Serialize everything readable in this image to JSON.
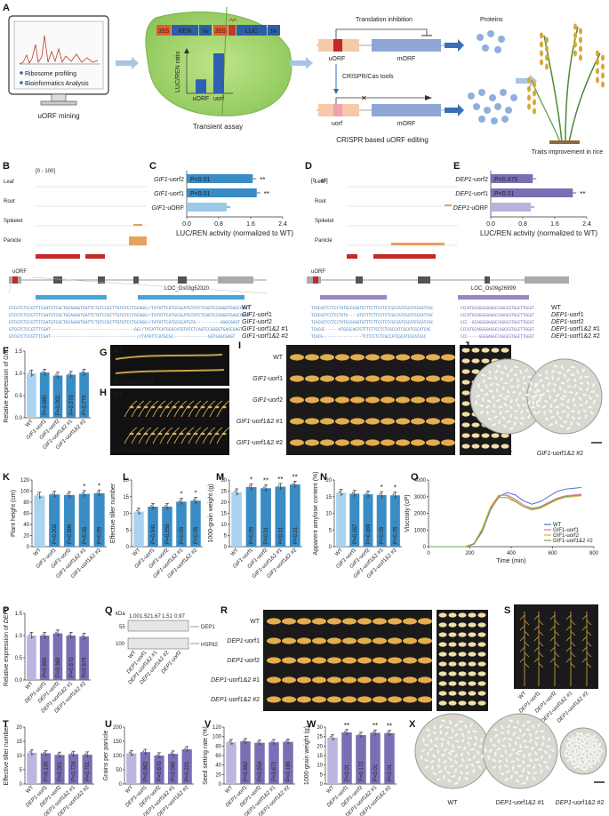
{
  "panelA": {
    "letter": "A",
    "mining_label": "uORF mining",
    "mining_bullets": [
      "Ribosome profiling",
      "Bioinformatics Analysis"
    ],
    "transient_label": "Transient assay",
    "construct": {
      "p35s_1": "35S",
      "ren": "REN",
      "ter1": "Ter",
      "p35s_2": "35S",
      "luc": "LUC",
      "ter2": "Ter"
    },
    "ratio_ylabel": "LUC/REN ratio",
    "ratio_bars": [
      {
        "name": "uORF",
        "value": 0.35
      },
      {
        "name": "uorf",
        "value": 1.0
      }
    ],
    "editing_label": "CRISPR based uORF editing",
    "translation_inhibition": "Translation inhibition",
    "uorf_top": "uORF",
    "morf_top": "mORF",
    "crispr_tools": "CRISPR/Cas tools",
    "uorf_bottom": "uorf",
    "morf_bottom": "mORF",
    "proteins": "Proteins",
    "traits_label": "Traits improvement in rice"
  },
  "panelB": {
    "letter": "B",
    "range": "[0 - 100]",
    "tracks": [
      "Leaf",
      "Root",
      "Spikelet",
      "Panicle"
    ],
    "uorf": "uORF",
    "locus": "LOC_Os03g52320",
    "seq_rows": [
      {
        "seq": "GTCGTCTCCGTTTCGATGTCGCTGCAGAGTGATTCTGTCCGCTTGTGTCCTGCAGG//TATATTCATGCGCATGTATCTCAGTCCGGGGTGAGCGAGT",
        "label_gene": "",
        "label_rest": "WT"
      },
      {
        "seq": "GTCGTCTCCGTTTCGATGTCGCTGCAGAGTGATTCTGTCCGCTTGTGTCCTGCAGG//TATATTCATGCGCATGTATCTCAGTCCGGGGTGAGCGAGT",
        "label_gene": "GIF1",
        "label_rest": "-uorf1"
      },
      {
        "seq": "GTCGTCTCCGTTTCGATGTCGCTGCAGAGTGATTCTGTCCGCTTGTGTCCTGCAGG//TATATTCATGCGCATGTA----------GAGCGAGT",
        "label_gene": "GIF1",
        "label_rest": "-uorf2"
      },
      {
        "seq": "GTCGTCTCCGTTTCGAT----------------------------------GG//TATATTCATGCGCATGTATCTCAGTCCGGGGTGAGCGAGT",
        "label_gene": "GIF1",
        "label_rest": "-uorf1&2 #1"
      },
      {
        "seq": "GTCGTCTCCGTTTCGAT-----------------------------------//TATATTCATGCGC--------------GGTGAGCGAGT",
        "label_gene": "GIF1",
        "label_rest": "-uorf1&2 #2"
      }
    ]
  },
  "panelD": {
    "letter": "D",
    "range": "[0 - 40]",
    "tracks": [
      "Leaf",
      "Root",
      "Spikelet",
      "Panicle"
    ],
    "uorf": "uORF",
    "locus": "LOC_Os09g26999",
    "seq_rows": [
      {
        "seq": "TCACGCTCCTCCTATGCGCAGTGTTTCTTCCTCTCGCCATCGCATCGCATCAC",
        "seq2": "CCCATGCAGGGGAGGCCAGGCGTGGCTTGGGT",
        "label_gene": "",
        "label_rest": "WT"
      },
      {
        "seq": "TCACGCTCCTCCTATG----GTGTTTCTTCCTCTCGCCATCGCATCGCATCAC",
        "seq2": "CCCATGCAGGGGAGGCCAGGCGTGGCTTGGGT",
        "label_gene": "DEP1",
        "label_rest": "-uorf1"
      },
      {
        "seq": "TCACGCTCCTCCTATGCGCAGTGTTTCTTCCTCTCGCCATCGCATCGCATCAC",
        "seq2": "CCC--GCAGGGGAGGCCAGGCGTGGCTTGGGT",
        "label_gene": "DEP1",
        "label_rest": "-uorf2"
      },
      {
        "seq": "TCACGC------ATGCGCAGTGTTTCTTCCTCTCGCCATCGCATCGCATCAC",
        "seq2": "CCCATGCAGGGGAGGCCAGGCGTGGCTTGGGT",
        "label_gene": "DEP1",
        "label_rest": "-uorf1&2 #1"
      },
      {
        "seq": "TCACG-----------------TCTTCCTCTCGCCATCGCATCGCATCAC",
        "seq2": "CCC-----GGGGAGGCCAGGCGTGGCTTGGGT",
        "label_gene": "DEP1",
        "label_rest": "-uorf1&2 #2"
      }
    ]
  },
  "panelG": {
    "letter": "G",
    "wt": "WT",
    "mut_gene": "GIF1",
    "mut_rest": "-uorf1&2 #2"
  },
  "panelH": {
    "letter": "H",
    "wt": "WT",
    "mut_gene": "GIF1",
    "mut_rest": "-uorf1&2 #2"
  },
  "panelI": {
    "letter": "I",
    "rows": [
      {
        "gene": "",
        "rest": "WT"
      },
      {
        "gene": "GIF1",
        "rest": "-uorf1"
      },
      {
        "gene": "GIF1",
        "rest": "-uorf2"
      },
      {
        "gene": "GIF1",
        "rest": "-uorf1&2 #1"
      },
      {
        "gene": "GIF1",
        "rest": "-uorf1&2 #2"
      }
    ]
  },
  "panelJ": {
    "letter": "J",
    "left": "WT",
    "right_gene": "GIF1",
    "right_rest": "-uorf1&2 #2"
  },
  "panelQ": {
    "letter": "Q",
    "kda": "kDa",
    "ratios": [
      "1.00",
      "1.52",
      "1.67",
      "1.51",
      "0.97"
    ],
    "marker_top": "55",
    "marker_bottom": "100",
    "band_top": "DEP1",
    "band_bottom": "HSP82",
    "lanes": [
      "WT",
      "DEP1-uorf1",
      "DEP1-uorf1&2 #1",
      "DEP1-uorf1&2 #2",
      "DEP1-uorf2"
    ]
  },
  "panelR": {
    "letter": "R",
    "rows": [
      {
        "gene": "",
        "rest": "WT"
      },
      {
        "gene": "DEP1",
        "rest": "-uorf1"
      },
      {
        "gene": "DEP1",
        "rest": "-uorf2"
      },
      {
        "gene": "DEP1",
        "rest": "-uorf1&2 #1"
      },
      {
        "gene": "DEP1",
        "rest": "-uorf1&2 #2"
      }
    ]
  },
  "panelS": {
    "letter": "S",
    "lanes": [
      "WT",
      "DEP1-uorf1",
      "DEP1-uorf2",
      "DEP1-uorf1&2 #1",
      "DEP1-uorf1&2 #2"
    ]
  },
  "panelX": {
    "letter": "X",
    "labels": [
      {
        "gene": "",
        "rest": "WT"
      },
      {
        "gene": "DEP1",
        "rest": "-uorf1&2 #1"
      },
      {
        "gene": "DEP1",
        "rest": "-uorf1&2 #2"
      }
    ]
  },
  "chart_data": [
    {
      "id": "C",
      "type": "bar",
      "orientation": "horizontal",
      "xlabel": "LUC/REN activity (normalized to WT)",
      "xlim": [
        0,
        2.4
      ],
      "xticks": [
        "0.0",
        "0.8",
        "1.6",
        "2.4"
      ],
      "categories": [
        "GIF1-uorf2",
        "GIF1-uorf1",
        "GIF1-uORF"
      ],
      "values": [
        1.65,
        1.75,
        1.0
      ],
      "pvals": [
        "P<0.01",
        "P<0.01",
        ""
      ],
      "stars": [
        "**",
        "**",
        ""
      ],
      "color": "#3a8cc4",
      "base_color": "#9cc9e6"
    },
    {
      "id": "E",
      "type": "bar",
      "orientation": "horizontal",
      "xlabel": "LUC/REN activity (normalized to WT)",
      "xlim": [
        0,
        2.4
      ],
      "xticks": [
        "0.0",
        "0.8",
        "1.6",
        "2.4"
      ],
      "categories": [
        "DEP1-uorf2",
        "DEP1-uorf1",
        "DEP1-uORF"
      ],
      "values": [
        1.05,
        2.05,
        1.0
      ],
      "pvals": [
        "P=0.475",
        "P<0.01",
        ""
      ],
      "stars": [
        "",
        "**",
        ""
      ],
      "color": "#7a6fb5",
      "base_color": "#b9b1dc"
    },
    {
      "id": "F",
      "type": "bar",
      "ylabel": "Relative expression of GIF1",
      "ylim": [
        0,
        1.5
      ],
      "yticks": [
        "0.0",
        "0.5",
        "1.0",
        "1.5"
      ],
      "categories": [
        "WT",
        "GIF1-uorf1",
        "GIF1-uorf2",
        "GIF1-uorf1&2 #1",
        "GIF1-uorf1&2 #2"
      ],
      "values": [
        1.0,
        1.02,
        0.95,
        0.97,
        1.02
      ],
      "pvals": [
        "",
        "P=0.680",
        "P=0.302",
        "P=0.578",
        "P=0.775"
      ],
      "stars": [
        "",
        "",
        "",
        "",
        ""
      ]
    },
    {
      "id": "K",
      "type": "bar",
      "ylabel": "Plant height (cm)",
      "ylim": [
        0,
        120
      ],
      "yticks": [
        "0",
        "20",
        "40",
        "60",
        "80",
        "100",
        "120"
      ],
      "categories": [
        "WT",
        "GIF1-uorf1",
        "GIF1-uorf2",
        "GIF1-uorf1&2 #1",
        "GIF1-uorf1&2 #2"
      ],
      "values": [
        92,
        94,
        93,
        95,
        96
      ],
      "pvals": [
        "",
        "P=0.202",
        "P=0.886",
        "P<0.05",
        "P<0.05"
      ],
      "stars": [
        "",
        "",
        "",
        "*",
        "*"
      ]
    },
    {
      "id": "L",
      "type": "bar",
      "ylabel": "Effective tiller number",
      "ylim": [
        0,
        20
      ],
      "yticks": [
        "0",
        "5",
        "10",
        "15",
        "20"
      ],
      "categories": [
        "WT",
        "GIF1-uorf1",
        "GIF1-uorf2",
        "GIF1-uorf1&2 #1",
        "GIF1-uorf1&2 #2"
      ],
      "values": [
        10.5,
        12,
        12,
        13.5,
        13.8
      ],
      "pvals": [
        "",
        "P=0.341",
        "P=0.255",
        "P<0.05",
        "P<0.05"
      ],
      "stars": [
        "",
        "",
        "",
        "*",
        "*"
      ]
    },
    {
      "id": "M",
      "type": "bar",
      "ylabel": "1000-grain weight (g)",
      "ylim": [
        0,
        30
      ],
      "yticks": [
        "0",
        "5",
        "10",
        "15",
        "20",
        "25",
        "30"
      ],
      "categories": [
        "WT",
        "GIF1-uorf1",
        "GIF1-uorf2",
        "GIF1-uorf1&2 #1",
        "GIF1-uorf1&2 #2"
      ],
      "values": [
        24.5,
        26.8,
        26.3,
        27.0,
        28.0
      ],
      "pvals": [
        "",
        "P<0.05",
        "P<0.01",
        "P<0.01",
        "P<0.01"
      ],
      "stars": [
        "",
        "*",
        "**",
        "**",
        "**"
      ]
    },
    {
      "id": "N",
      "type": "bar",
      "ylabel": "Apparent amylose content (%)",
      "ylim": [
        0,
        20
      ],
      "yticks": [
        "0",
        "5",
        "10",
        "15",
        "20"
      ],
      "categories": [
        "WT",
        "GIF1-uorf1",
        "GIF1-uorf2",
        "GIF1-uorf1&2 #1",
        "GIF1-uorf1&2 #2"
      ],
      "values": [
        16.2,
        15.9,
        15.7,
        15.5,
        15.4
      ],
      "pvals": [
        "",
        "P=0.167",
        "P=0.069",
        "P<0.05",
        "P<0.05"
      ],
      "stars": [
        "",
        "",
        "",
        "*",
        "*"
      ]
    },
    {
      "id": "O",
      "type": "line",
      "xlabel": "Time (min)",
      "ylabel": "Viscosity (cP)",
      "xlim": [
        0,
        800
      ],
      "ylim": [
        0,
        4000
      ],
      "xticks": [
        "0",
        "200",
        "400",
        "600",
        "800"
      ],
      "yticks": [
        "0",
        "1000",
        "2000",
        "3000",
        "4000"
      ],
      "series": [
        {
          "name": "WT",
          "color": "#4a6fd1",
          "x": [
            0,
            180,
            220,
            260,
            300,
            340,
            380,
            420,
            460,
            500,
            540,
            580,
            620,
            660,
            700,
            740
          ],
          "y": [
            0,
            0,
            150,
            900,
            2200,
            3000,
            3250,
            3100,
            2750,
            2550,
            2700,
            3000,
            3300,
            3450,
            3500,
            3550
          ]
        },
        {
          "name": "GIF1-uorf1",
          "color": "#e070a0",
          "x": [
            0,
            180,
            220,
            260,
            300,
            340,
            380,
            420,
            460,
            500,
            540,
            580,
            620,
            660,
            700,
            740
          ],
          "y": [
            0,
            0,
            180,
            1000,
            2300,
            3050,
            3100,
            2850,
            2500,
            2300,
            2400,
            2650,
            2900,
            3050,
            3100,
            3150
          ]
        },
        {
          "name": "GIF1-uorf2",
          "color": "#e0b030",
          "x": [
            0,
            180,
            220,
            260,
            300,
            340,
            380,
            420,
            460,
            500,
            540,
            580,
            620,
            660,
            700,
            740
          ],
          "y": [
            0,
            0,
            200,
            1100,
            2400,
            3100,
            3050,
            2750,
            2400,
            2200,
            2300,
            2550,
            2800,
            2950,
            3000,
            3050
          ]
        },
        {
          "name": "GIF1-uorf1&2 #2",
          "color": "#6aa84f",
          "x": [
            0,
            180,
            220,
            260,
            300,
            340,
            380,
            420,
            460,
            500,
            540,
            580,
            620,
            660,
            700,
            740
          ],
          "y": [
            0,
            0,
            170,
            950,
            2250,
            2950,
            2950,
            2700,
            2400,
            2250,
            2350,
            2600,
            2850,
            3000,
            3050,
            3100
          ]
        }
      ]
    },
    {
      "id": "P",
      "type": "bar",
      "ylabel": "Relative expression of DEP1",
      "ylim": [
        0,
        1.5
      ],
      "yticks": [
        "0.0",
        "0.5",
        "1.0",
        "1.5"
      ],
      "categories": [
        "WT",
        "DEP1-uorf1",
        "DEP1-uorf2",
        "DEP1-uorf1&2 #1",
        "DEP1-uorf1&2 #2"
      ],
      "values": [
        1.0,
        1.0,
        1.05,
        1.0,
        0.98
      ],
      "pvals": [
        "",
        "P=0.865",
        "P=0.368",
        "P=0.870",
        "P=0.878"
      ],
      "stars": [
        "",
        "",
        "",
        "",
        ""
      ]
    },
    {
      "id": "T",
      "type": "bar",
      "ylabel": "Effective tiller number",
      "ylim": [
        0,
        20
      ],
      "yticks": [
        "0",
        "5",
        "10",
        "15",
        "20"
      ],
      "categories": [
        "WT",
        "DEP1-uorf1",
        "DEP1-uorf2",
        "DEP1-uorf1&2 #1",
        "DEP1-uorf1&2 #2"
      ],
      "values": [
        11,
        10.8,
        10.2,
        10.5,
        10.3
      ],
      "pvals": [
        "",
        "P=0.100",
        "P=0.001",
        "P=0.724",
        "P=0.701"
      ],
      "stars": [
        "",
        "",
        "",
        "",
        ""
      ]
    },
    {
      "id": "U",
      "type": "bar",
      "ylabel": "Grains per panicle",
      "ylim": [
        0,
        200
      ],
      "yticks": [
        "0",
        "50",
        "100",
        "150",
        "200"
      ],
      "categories": [
        "WT",
        "DEP1-uorf1",
        "DEP1-uorf2",
        "DEP1-uorf1&2 #1",
        "DEP1-uorf1&2 #2"
      ],
      "values": [
        108,
        112,
        100,
        106,
        122
      ],
      "pvals": [
        "",
        "P=0.862",
        "P=0.670",
        "P=0.090",
        "P=0.221"
      ],
      "stars": [
        "",
        "",
        "",
        "",
        ""
      ]
    },
    {
      "id": "V",
      "type": "bar",
      "ylabel": "Seed setting rate (%)",
      "ylim": [
        0,
        120
      ],
      "yticks": [
        "0",
        "20",
        "40",
        "60",
        "80",
        "100",
        "120"
      ],
      "categories": [
        "WT",
        "DEP1-uorf1",
        "DEP1-uorf2",
        "DEP1-uorf1&2 #1",
        "DEP1-uorf1&2 #2"
      ],
      "values": [
        88,
        90,
        87,
        88,
        89
      ],
      "pvals": [
        "",
        "P=0.862",
        "P=0.554",
        "P=0.672",
        "P=0.189"
      ],
      "stars": [
        "",
        "",
        "",
        "",
        ""
      ]
    },
    {
      "id": "W",
      "type": "bar",
      "ylabel": "1000-grain weight (g)",
      "ylim": [
        0,
        30
      ],
      "yticks": [
        "0",
        "5",
        "10",
        "15",
        "20",
        "25",
        "30"
      ],
      "categories": [
        "WT",
        "DEP1-uorf1",
        "DEP1-uorf2",
        "DEP1-uorf1&2 #1",
        "DEP1-uorf1&2 #2"
      ],
      "values": [
        24.5,
        27.2,
        25.8,
        27.0,
        26.8
      ],
      "pvals": [
        "",
        "P<0.01",
        "P=0.172",
        "P<0.01",
        "P<0.01"
      ],
      "stars": [
        "",
        "**",
        "",
        "**",
        "**"
      ]
    }
  ]
}
